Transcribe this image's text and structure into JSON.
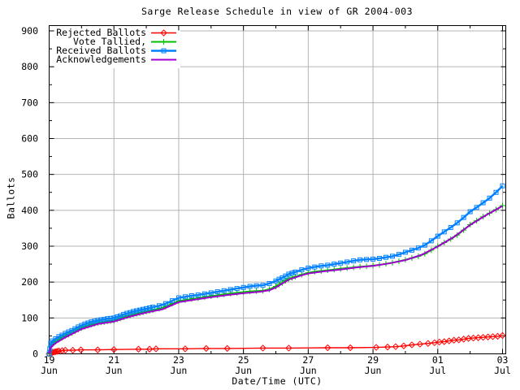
{
  "chart_data": {
    "type": "line",
    "title": "Sarge Release Schedule in view of GR 2004-003",
    "xlabel": "Date/Time (UTC)",
    "ylabel": "Ballots",
    "x_unit": "days since 19 Jun 2004 (UTC)",
    "xlim_days": [
      0,
      14.1
    ],
    "ylim": [
      0,
      915
    ],
    "grid": true,
    "legend_position": "top-left-inside",
    "colors": {
      "rejected": "#ff0000",
      "tallied": "#00c000",
      "received": "#0080ff",
      "acknowledgements": "#a000d0",
      "grid": "#b3b3b3",
      "border": "#000000",
      "text": "#000000",
      "background": "#ffffff"
    },
    "y_ticks": [
      0,
      100,
      200,
      300,
      400,
      500,
      600,
      700,
      800,
      900
    ],
    "y_minor_ticks": [
      50,
      150,
      250,
      350,
      450,
      550,
      650,
      750,
      850
    ],
    "x_ticks": [
      {
        "day": 0,
        "date": "19",
        "month": "Jun"
      },
      {
        "day": 2,
        "date": "21",
        "month": "Jun"
      },
      {
        "day": 4,
        "date": "23",
        "month": "Jun"
      },
      {
        "day": 6,
        "date": "25",
        "month": "Jun"
      },
      {
        "day": 8,
        "date": "27",
        "month": "Jun"
      },
      {
        "day": 10,
        "date": "29",
        "month": "Jun"
      },
      {
        "day": 12,
        "date": "01",
        "month": "Jul"
      },
      {
        "day": 14,
        "date": "03",
        "month": "Jul"
      }
    ],
    "x_minor_tick_days": [
      1,
      3,
      5,
      7,
      9,
      11,
      13
    ],
    "series": [
      {
        "name": "Rejected Ballots",
        "color": "#ff0000",
        "marker": "diamond",
        "points": [
          [
            0,
            0
          ],
          [
            0.05,
            2
          ],
          [
            0.1,
            4
          ],
          [
            0.15,
            5
          ],
          [
            0.2,
            6
          ],
          [
            0.25,
            7
          ],
          [
            0.3,
            8
          ],
          [
            0.4,
            9
          ],
          [
            0.5,
            10
          ],
          [
            0.73,
            10
          ],
          [
            0.98,
            11
          ],
          [
            1.5,
            11
          ],
          [
            2,
            12
          ],
          [
            2.76,
            13
          ],
          [
            3.1,
            13
          ],
          [
            3.3,
            14
          ],
          [
            4.2,
            14
          ],
          [
            4.85,
            15
          ],
          [
            5.5,
            15
          ],
          [
            6.6,
            16
          ],
          [
            7.4,
            16
          ],
          [
            8.6,
            17
          ],
          [
            9.3,
            17
          ],
          [
            10.1,
            18
          ],
          [
            10.45,
            19
          ],
          [
            10.7,
            20
          ],
          [
            10.95,
            22
          ],
          [
            11.2,
            25
          ],
          [
            11.45,
            27
          ],
          [
            11.7,
            29
          ],
          [
            11.9,
            31
          ],
          [
            12.05,
            33
          ],
          [
            12.2,
            34
          ],
          [
            12.35,
            36
          ],
          [
            12.5,
            38
          ],
          [
            12.65,
            39
          ],
          [
            12.8,
            41
          ],
          [
            12.95,
            43
          ],
          [
            13.1,
            44
          ],
          [
            13.25,
            45
          ],
          [
            13.4,
            46
          ],
          [
            13.55,
            47
          ],
          [
            13.7,
            48
          ],
          [
            13.85,
            49
          ],
          [
            14,
            51
          ]
        ]
      },
      {
        "name": "Vote Tallied,",
        "color": "#00c000",
        "marker": "plus",
        "points": [
          [
            0,
            0
          ],
          [
            0.02,
            10
          ],
          [
            0.05,
            22
          ],
          [
            0.1,
            28
          ],
          [
            0.2,
            34
          ],
          [
            0.3,
            40
          ],
          [
            0.4,
            45
          ],
          [
            0.5,
            50
          ],
          [
            0.6,
            54
          ],
          [
            0.7,
            58
          ],
          [
            0.8,
            63
          ],
          [
            0.9,
            68
          ],
          [
            1,
            72
          ],
          [
            1.1,
            76
          ],
          [
            1.2,
            79
          ],
          [
            1.3,
            82
          ],
          [
            1.4,
            84
          ],
          [
            1.5,
            86
          ],
          [
            1.6,
            88
          ],
          [
            1.7,
            89
          ],
          [
            1.8,
            91
          ],
          [
            1.9,
            92
          ],
          [
            2,
            93
          ],
          [
            2.1,
            96
          ],
          [
            2.2,
            99
          ],
          [
            2.3,
            102
          ],
          [
            2.4,
            105
          ],
          [
            2.5,
            107
          ],
          [
            2.6,
            110
          ],
          [
            2.7,
            112
          ],
          [
            2.8,
            114
          ],
          [
            2.9,
            116
          ],
          [
            3,
            118
          ],
          [
            3.1,
            120
          ],
          [
            3.2,
            122
          ],
          [
            3.4,
            126
          ],
          [
            3.6,
            132
          ],
          [
            3.8,
            140
          ],
          [
            4,
            147
          ],
          [
            4.2,
            150
          ],
          [
            4.4,
            153
          ],
          [
            4.6,
            155
          ],
          [
            4.8,
            158
          ],
          [
            5,
            161
          ],
          [
            5.2,
            163
          ],
          [
            5.4,
            166
          ],
          [
            5.6,
            168
          ],
          [
            5.8,
            170
          ],
          [
            6,
            172
          ],
          [
            6.2,
            174
          ],
          [
            6.4,
            175
          ],
          [
            6.6,
            176
          ],
          [
            6.8,
            180
          ],
          [
            7,
            188
          ],
          [
            7.1,
            193
          ],
          [
            7.2,
            198
          ],
          [
            7.3,
            204
          ],
          [
            7.4,
            209
          ],
          [
            7.5,
            212
          ],
          [
            7.6,
            215
          ],
          [
            7.8,
            221
          ],
          [
            8,
            226
          ],
          [
            8.2,
            229
          ],
          [
            8.4,
            231
          ],
          [
            8.6,
            233
          ],
          [
            8.8,
            235
          ],
          [
            9,
            237
          ],
          [
            9.2,
            239
          ],
          [
            9.4,
            241
          ],
          [
            9.6,
            243
          ],
          [
            9.8,
            244
          ],
          [
            10,
            246
          ],
          [
            10.2,
            248
          ],
          [
            10.4,
            251
          ],
          [
            10.6,
            254
          ],
          [
            10.8,
            258
          ],
          [
            11,
            262
          ],
          [
            11.2,
            267
          ],
          [
            11.4,
            272
          ],
          [
            11.6,
            279
          ],
          [
            11.8,
            289
          ],
          [
            12,
            300
          ],
          [
            12.2,
            310
          ],
          [
            12.4,
            320
          ],
          [
            12.6,
            331
          ],
          [
            12.8,
            345
          ],
          [
            13,
            360
          ],
          [
            13.2,
            371
          ],
          [
            13.4,
            382
          ],
          [
            13.6,
            392
          ],
          [
            13.8,
            402
          ],
          [
            14,
            413
          ]
        ]
      },
      {
        "name": "Received Ballots",
        "color": "#0080ff",
        "marker": "square",
        "points": [
          [
            0,
            0
          ],
          [
            0.02,
            14
          ],
          [
            0.05,
            30
          ],
          [
            0.1,
            36
          ],
          [
            0.2,
            42
          ],
          [
            0.3,
            48
          ],
          [
            0.4,
            52
          ],
          [
            0.5,
            57
          ],
          [
            0.6,
            61
          ],
          [
            0.7,
            65
          ],
          [
            0.8,
            70
          ],
          [
            0.9,
            75
          ],
          [
            1,
            79
          ],
          [
            1.1,
            83
          ],
          [
            1.2,
            86
          ],
          [
            1.3,
            89
          ],
          [
            1.4,
            91
          ],
          [
            1.5,
            93
          ],
          [
            1.6,
            95
          ],
          [
            1.7,
            96
          ],
          [
            1.8,
            98
          ],
          [
            1.9,
            99
          ],
          [
            2,
            100
          ],
          [
            2.1,
            103
          ],
          [
            2.2,
            106
          ],
          [
            2.3,
            110
          ],
          [
            2.4,
            113
          ],
          [
            2.5,
            115
          ],
          [
            2.6,
            118
          ],
          [
            2.7,
            120
          ],
          [
            2.8,
            122
          ],
          [
            2.9,
            124
          ],
          [
            3,
            126
          ],
          [
            3.1,
            128
          ],
          [
            3.2,
            130
          ],
          [
            3.4,
            134
          ],
          [
            3.6,
            140
          ],
          [
            3.8,
            148
          ],
          [
            4,
            156
          ],
          [
            4.2,
            159
          ],
          [
            4.4,
            162
          ],
          [
            4.6,
            164
          ],
          [
            4.8,
            167
          ],
          [
            5,
            170
          ],
          [
            5.2,
            173
          ],
          [
            5.4,
            176
          ],
          [
            5.6,
            179
          ],
          [
            5.8,
            182
          ],
          [
            6,
            185
          ],
          [
            6.2,
            188
          ],
          [
            6.4,
            190
          ],
          [
            6.6,
            191
          ],
          [
            6.8,
            196
          ],
          [
            7,
            203
          ],
          [
            7.1,
            208
          ],
          [
            7.2,
            212
          ],
          [
            7.3,
            217
          ],
          [
            7.4,
            222
          ],
          [
            7.5,
            225
          ],
          [
            7.6,
            228
          ],
          [
            7.8,
            234
          ],
          [
            8,
            239
          ],
          [
            8.2,
            242
          ],
          [
            8.4,
            245
          ],
          [
            8.6,
            247
          ],
          [
            8.8,
            250
          ],
          [
            9,
            253
          ],
          [
            9.2,
            256
          ],
          [
            9.4,
            259
          ],
          [
            9.6,
            262
          ],
          [
            9.8,
            263
          ],
          [
            10,
            264
          ],
          [
            10.2,
            266
          ],
          [
            10.4,
            269
          ],
          [
            10.6,
            272
          ],
          [
            10.8,
            277
          ],
          [
            11,
            283
          ],
          [
            11.2,
            289
          ],
          [
            11.4,
            295
          ],
          [
            11.6,
            303
          ],
          [
            11.8,
            315
          ],
          [
            12,
            328
          ],
          [
            12.2,
            340
          ],
          [
            12.4,
            352
          ],
          [
            12.6,
            365
          ],
          [
            12.8,
            380
          ],
          [
            13,
            396
          ],
          [
            13.2,
            408
          ],
          [
            13.4,
            421
          ],
          [
            13.6,
            434
          ],
          [
            13.8,
            450
          ],
          [
            14,
            468
          ]
        ]
      },
      {
        "name": "Acknowledgements",
        "color": "#a000d0",
        "marker": "none",
        "points": [
          [
            0,
            0
          ],
          [
            0.05,
            18
          ],
          [
            0.2,
            30
          ],
          [
            0.5,
            46
          ],
          [
            1,
            69
          ],
          [
            1.5,
            83
          ],
          [
            2,
            90
          ],
          [
            2.5,
            104
          ],
          [
            3,
            115
          ],
          [
            3.5,
            124
          ],
          [
            4,
            144
          ],
          [
            4.5,
            151
          ],
          [
            5,
            158
          ],
          [
            5.5,
            164
          ],
          [
            6,
            169
          ],
          [
            6.5,
            173
          ],
          [
            6.8,
            177
          ],
          [
            7,
            185
          ],
          [
            7.2,
            196
          ],
          [
            7.4,
            207
          ],
          [
            7.6,
            213
          ],
          [
            7.8,
            219
          ],
          [
            8,
            224
          ],
          [
            8.5,
            230
          ],
          [
            9,
            235
          ],
          [
            9.5,
            241
          ],
          [
            10,
            245
          ],
          [
            10.5,
            252
          ],
          [
            11,
            261
          ],
          [
            11.5,
            276
          ],
          [
            12,
            299
          ],
          [
            12.5,
            326
          ],
          [
            13,
            359
          ],
          [
            13.5,
            387
          ],
          [
            14,
            412
          ]
        ]
      }
    ]
  }
}
